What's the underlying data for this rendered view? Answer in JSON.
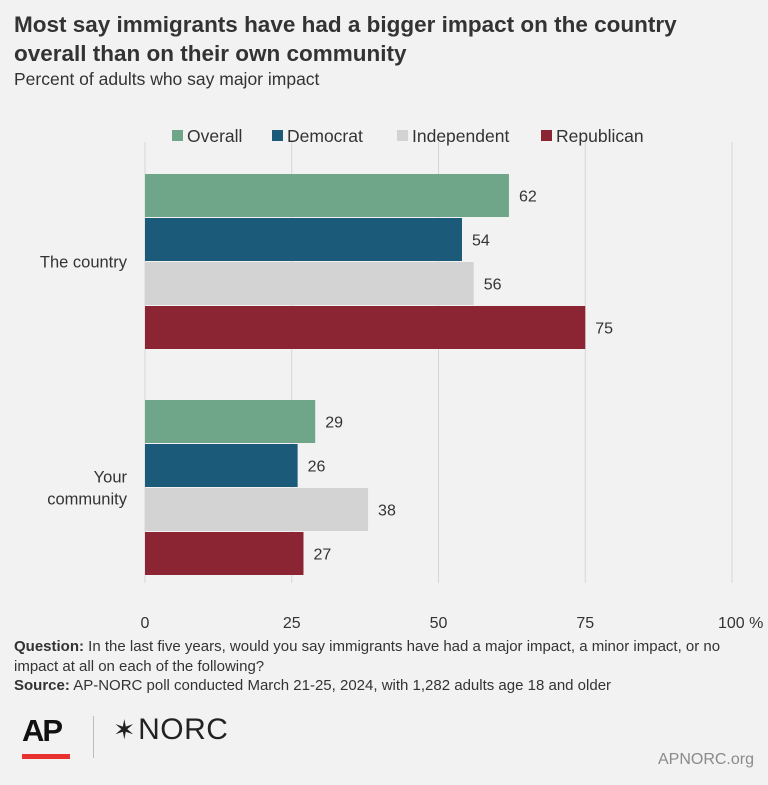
{
  "header": {
    "title": "Most say immigrants have had a bigger impact on the country overall than on their own community",
    "subtitle": "Percent of adults who say major impact"
  },
  "footer": {
    "question_label": "Question:",
    "question_text": "In the last five years, would you say immigrants have had a major impact, a minor impact, or no impact at all on each of the following?",
    "source_label": "Source:",
    "source_text": "AP-NORC poll conducted March 21-25, 2024, with 1,282 adults age 18 and older",
    "ap_logo": "AP",
    "norc_logo": "NORC",
    "site": "APNORC.org"
  },
  "colors": {
    "Overall": "#6fa588",
    "Democrat": "#1b5a78",
    "Independent": "#d3d3d3",
    "Republican": "#8b2533",
    "ap_red": "#e8312f"
  },
  "chart_data": {
    "type": "bar",
    "orientation": "horizontal",
    "categories": [
      "The country",
      "Your\ncommunity"
    ],
    "series": [
      {
        "name": "Overall",
        "values": [
          62,
          29
        ]
      },
      {
        "name": "Democrat",
        "values": [
          54,
          26
        ]
      },
      {
        "name": "Independent",
        "values": [
          56,
          38
        ]
      },
      {
        "name": "Republican",
        "values": [
          75,
          27
        ]
      }
    ],
    "xlim": [
      0,
      100
    ],
    "xticks": [
      0,
      25,
      50,
      75,
      100
    ],
    "xtick_labels": [
      "0",
      "25",
      "50",
      "75",
      "100 %"
    ],
    "grid": true,
    "legend_position": "top"
  }
}
